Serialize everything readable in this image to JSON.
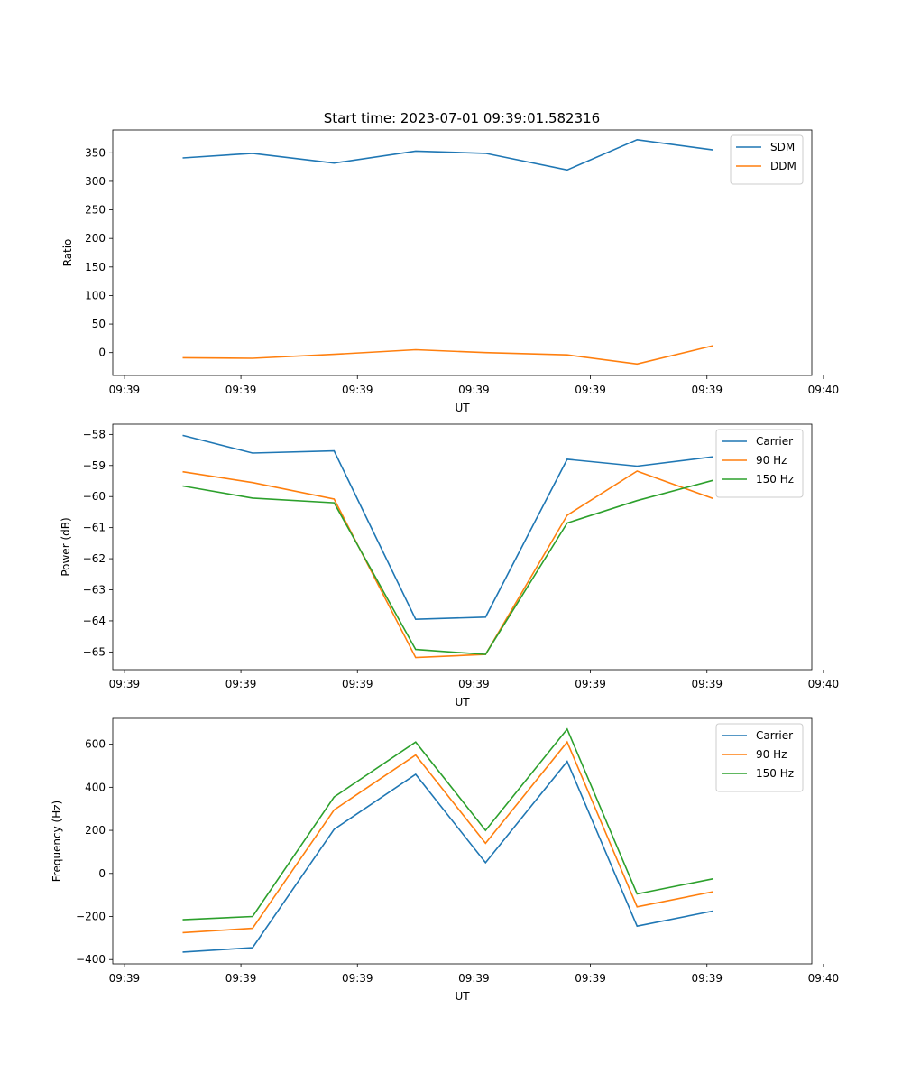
{
  "figure_title": "Start time: 2023-07-01 09:39:01.582316",
  "colors": {
    "blue": "#1f77b4",
    "orange": "#ff7f0e",
    "green": "#2ca02c"
  },
  "chart_data": [
    {
      "type": "line",
      "title": "Start time: 2023-07-01 09:39:01.582316",
      "xlabel": "UT",
      "ylabel": "Ratio",
      "x": [
        0.5,
        1.1,
        1.8,
        2.5,
        3.1,
        3.8,
        4.4,
        5.05
      ],
      "xlim": [
        -0.1,
        5.9
      ],
      "xticks": [
        0,
        1,
        2,
        3,
        4,
        5,
        6
      ],
      "xtick_labels": [
        "09:39",
        "09:39",
        "09:39",
        "09:39",
        "09:39",
        "09:39",
        "09:40"
      ],
      "ylim": [
        -40,
        390
      ],
      "yticks": [
        0,
        50,
        100,
        150,
        200,
        250,
        300,
        350
      ],
      "legend_position": "top-right",
      "series": [
        {
          "name": "SDM",
          "color": "#1f77b4",
          "values": [
            341,
            349,
            332,
            353,
            349,
            320,
            373,
            355
          ]
        },
        {
          "name": "DDM",
          "color": "#ff7f0e",
          "values": [
            -9,
            -10,
            -3,
            5,
            0,
            -4,
            -20,
            12
          ]
        }
      ]
    },
    {
      "type": "line",
      "title": "",
      "xlabel": "UT",
      "ylabel": "Power (dB)",
      "x": [
        0.5,
        1.1,
        1.8,
        2.5,
        3.1,
        3.8,
        4.4,
        5.05
      ],
      "xlim": [
        -0.1,
        5.9
      ],
      "xticks": [
        0,
        1,
        2,
        3,
        4,
        5,
        6
      ],
      "xtick_labels": [
        "09:39",
        "09:39",
        "09:39",
        "09:39",
        "09:39",
        "09:39",
        "09:40"
      ],
      "ylim": [
        -65.57,
        -57.67
      ],
      "yticks": [
        -65,
        -64,
        -63,
        -62,
        -61,
        -60,
        -59,
        -58
      ],
      "legend_position": "top-right",
      "series": [
        {
          "name": "Carrier",
          "color": "#1f77b4",
          "values": [
            -58.03,
            -58.6,
            -58.53,
            -63.95,
            -63.88,
            -58.8,
            -59.02,
            -58.72
          ]
        },
        {
          "name": "90 Hz",
          "color": "#ff7f0e",
          "values": [
            -59.2,
            -59.55,
            -60.08,
            -65.18,
            -65.08,
            -60.6,
            -59.18,
            -60.06
          ]
        },
        {
          "name": "150 Hz",
          "color": "#2ca02c",
          "values": [
            -59.66,
            -60.05,
            -60.2,
            -64.92,
            -65.08,
            -60.85,
            -60.13,
            -59.48
          ]
        }
      ]
    },
    {
      "type": "line",
      "title": "",
      "xlabel": "UT",
      "ylabel": "Frequency (Hz)",
      "x": [
        0.5,
        1.1,
        1.8,
        2.5,
        3.1,
        3.8,
        4.4,
        5.05
      ],
      "xlim": [
        -0.1,
        5.9
      ],
      "xticks": [
        0,
        1,
        2,
        3,
        4,
        5,
        6
      ],
      "xtick_labels": [
        "09:39",
        "09:39",
        "09:39",
        "09:39",
        "09:39",
        "09:39",
        "09:40"
      ],
      "ylim": [
        -420,
        720
      ],
      "yticks": [
        -400,
        -200,
        0,
        200,
        400,
        600
      ],
      "legend_position": "top-right",
      "series": [
        {
          "name": "Carrier",
          "color": "#1f77b4",
          "values": [
            -365,
            -345,
            205,
            460,
            50,
            520,
            -245,
            -175
          ]
        },
        {
          "name": "90 Hz",
          "color": "#ff7f0e",
          "values": [
            -275,
            -255,
            295,
            550,
            140,
            610,
            -155,
            -85
          ]
        },
        {
          "name": "150 Hz",
          "color": "#2ca02c",
          "values": [
            -215,
            -200,
            355,
            610,
            200,
            670,
            -95,
            -25
          ]
        }
      ]
    }
  ]
}
